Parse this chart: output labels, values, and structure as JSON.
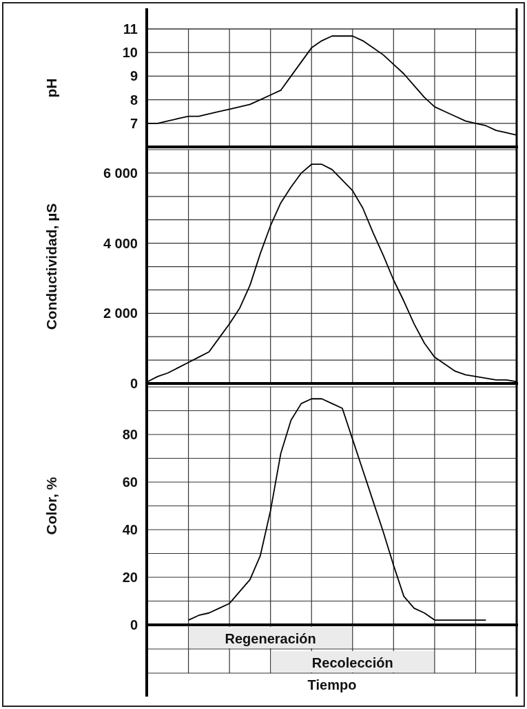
{
  "chart_data": [
    {
      "type": "line",
      "ylabel": "pH",
      "categories": [
        null,
        null,
        null,
        null,
        null,
        null,
        null,
        null,
        null,
        null,
        null,
        null,
        null,
        null,
        null,
        null,
        null,
        null,
        null,
        null,
        null,
        null,
        null,
        null,
        null,
        null,
        null,
        null,
        null,
        null,
        null,
        null,
        null,
        null,
        null,
        null,
        null
      ],
      "series": [
        {
          "color": "#000000",
          "values": [
            7.0,
            7.0,
            7.1,
            7.2,
            7.3,
            7.3,
            7.4,
            7.5,
            7.6,
            7.7,
            7.8,
            8.0,
            8.2,
            8.4,
            9.0,
            9.6,
            10.2,
            10.5,
            10.7,
            10.7,
            10.7,
            10.5,
            10.2,
            9.9,
            9.5,
            9.1,
            8.6,
            8.1,
            7.7,
            7.5,
            7.3,
            7.1,
            7.0,
            6.9,
            6.7,
            6.6,
            6.5
          ]
        }
      ],
      "ylim": [
        6,
        11
      ],
      "yticks": [
        7,
        8,
        9,
        10,
        11
      ],
      "grid": true,
      "tick_labels": "y"
    },
    {
      "type": "line",
      "ylabel": "Conductividad,  µS",
      "categories": [
        null,
        null,
        null,
        null,
        null,
        null,
        null,
        null,
        null,
        null,
        null,
        null,
        null,
        null,
        null,
        null,
        null,
        null,
        null,
        null,
        null,
        null,
        null,
        null,
        null,
        null,
        null,
        null,
        null,
        null,
        null,
        null,
        null,
        null,
        null,
        null,
        null
      ],
      "series": [
        {
          "color": "#000000",
          "values": [
            50,
            200,
            300,
            450,
            600,
            750,
            900,
            1300,
            1700,
            2150,
            2800,
            3700,
            4500,
            5150,
            5600,
            6000,
            6250,
            6250,
            6100,
            5800,
            5500,
            5000,
            4300,
            3650,
            2950,
            2350,
            1700,
            1150,
            750,
            550,
            350,
            250,
            200,
            150,
            100,
            100,
            50
          ]
        }
      ],
      "ylim": [
        0,
        6667
      ],
      "yticks": [
        {
          "value": 0,
          "label": "0"
        },
        {
          "value": 667,
          "label": null
        },
        {
          "value": 1333,
          "label": null
        },
        {
          "value": 2000,
          "label": "2 000"
        },
        {
          "value": 2667,
          "label": null
        },
        {
          "value": 3333,
          "label": null
        },
        {
          "value": 4000,
          "label": "4 000"
        },
        {
          "value": 4667,
          "label": null
        },
        {
          "value": 5333,
          "label": null
        },
        {
          "value": 6000,
          "label": "6 000"
        }
      ],
      "grid": true,
      "tick_labels": "y"
    },
    {
      "type": "line",
      "ylabel": "Color, %",
      "xlabel": "Tiempo",
      "categories": [
        null,
        null,
        null,
        null,
        null,
        null,
        null,
        null,
        null,
        null,
        null,
        null,
        null,
        null,
        null,
        null,
        null,
        null,
        null,
        null,
        null,
        null,
        null,
        null,
        null,
        null,
        null,
        null,
        null,
        null,
        null,
        null,
        null,
        null,
        null,
        null,
        null
      ],
      "series": [
        {
          "color": "#000000",
          "values": [
            null,
            null,
            null,
            null,
            2,
            4,
            5,
            7,
            9,
            14,
            19,
            29,
            48,
            72,
            86,
            93,
            95,
            95,
            93,
            91,
            78,
            65,
            52,
            39,
            25,
            12,
            7,
            5,
            2,
            2,
            2,
            2,
            2,
            2,
            null,
            null,
            null
          ]
        }
      ],
      "ylim": [
        0,
        100
      ],
      "yticks": [
        0,
        {
          "value": 10,
          "label": null
        },
        20,
        {
          "value": 30,
          "label": null
        },
        40,
        {
          "value": 50,
          "label": null
        },
        60,
        {
          "value": 70,
          "label": null
        },
        80,
        {
          "value": 90,
          "label": null
        }
      ],
      "grid": true,
      "tick_labels": "y",
      "annotations": [
        "Regeneración",
        "Recolección"
      ]
    }
  ]
}
